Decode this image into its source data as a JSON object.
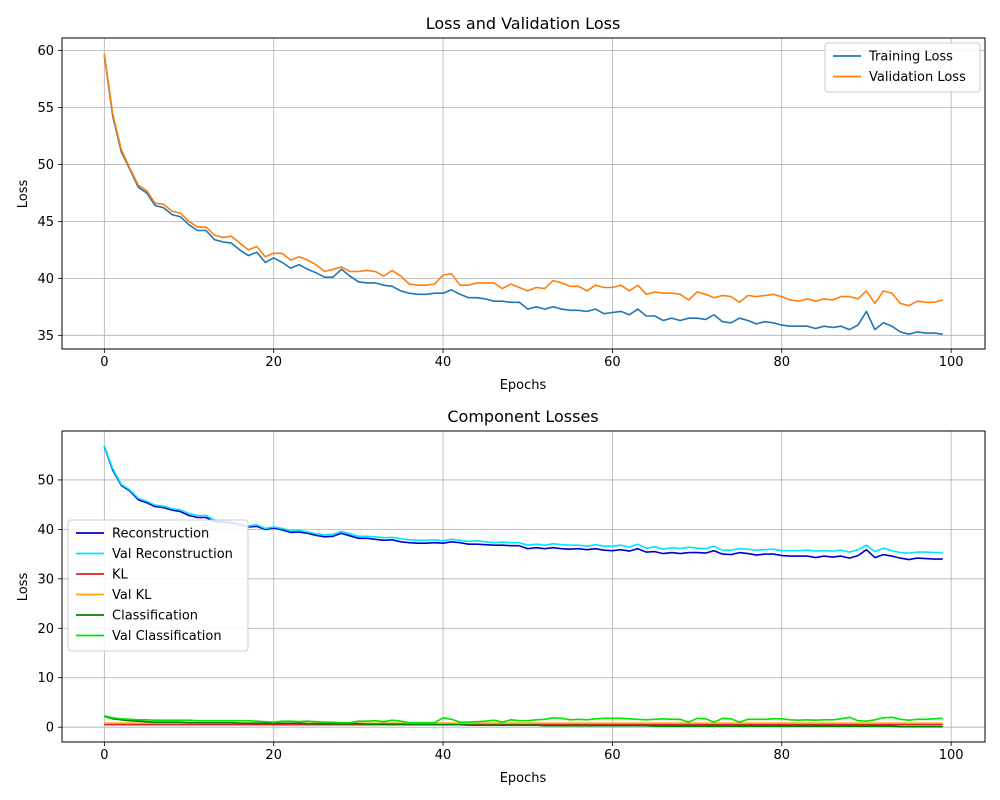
{
  "chart_data": [
    {
      "type": "line",
      "title": "Loss and Validation Loss",
      "xlabel": "Epochs",
      "ylabel": "Loss",
      "xlim": [
        -5,
        104
      ],
      "ylim": [
        33.8,
        61.1
      ],
      "xticks": [
        0,
        20,
        40,
        60,
        80,
        100
      ],
      "yticks": [
        35,
        40,
        45,
        50,
        55,
        60
      ],
      "grid": true,
      "legend_position": "top-right",
      "x_start": 0,
      "x_step": 1,
      "series": [
        {
          "name": "Training Loss",
          "color": "#1f77b4",
          "values": [
            59.6,
            54.2,
            51.1,
            49.6,
            48.0,
            47.5,
            46.4,
            46.2,
            45.6,
            45.4,
            44.7,
            44.2,
            44.2,
            43.4,
            43.2,
            43.1,
            42.5,
            42.0,
            42.3,
            41.4,
            41.8,
            41.4,
            40.9,
            41.2,
            40.8,
            40.5,
            40.1,
            40.1,
            40.8,
            40.2,
            39.7,
            39.6,
            39.6,
            39.4,
            39.3,
            38.9,
            38.7,
            38.6,
            38.6,
            38.7,
            38.7,
            39.0,
            38.6,
            38.3,
            38.3,
            38.2,
            38.0,
            38.0,
            37.9,
            37.9,
            37.3,
            37.5,
            37.3,
            37.5,
            37.3,
            37.2,
            37.2,
            37.1,
            37.3,
            36.9,
            37.0,
            37.1,
            36.8,
            37.3,
            36.7,
            36.7,
            36.3,
            36.5,
            36.3,
            36.5,
            36.5,
            36.4,
            36.8,
            36.2,
            36.1,
            36.5,
            36.3,
            36.0,
            36.2,
            36.1,
            35.9,
            35.8,
            35.8,
            35.8,
            35.6,
            35.8,
            35.7,
            35.8,
            35.5,
            35.9,
            37.1,
            35.5,
            36.1,
            35.8,
            35.3,
            35.1,
            35.3,
            35.2,
            35.2,
            35.1
          ]
        },
        {
          "name": "Validation Loss",
          "color": "#ff7f0e",
          "values": [
            59.7,
            54.4,
            51.3,
            49.7,
            48.2,
            47.7,
            46.6,
            46.5,
            45.9,
            45.7,
            45.0,
            44.5,
            44.5,
            43.8,
            43.6,
            43.7,
            43.1,
            42.5,
            42.8,
            41.9,
            42.2,
            42.2,
            41.6,
            41.9,
            41.6,
            41.2,
            40.6,
            40.8,
            41.0,
            40.6,
            40.6,
            40.7,
            40.6,
            40.2,
            40.7,
            40.2,
            39.5,
            39.4,
            39.4,
            39.5,
            40.3,
            40.4,
            39.4,
            39.4,
            39.6,
            39.6,
            39.6,
            39.1,
            39.5,
            39.2,
            38.9,
            39.2,
            39.1,
            39.8,
            39.6,
            39.3,
            39.3,
            38.9,
            39.4,
            39.2,
            39.2,
            39.4,
            38.9,
            39.4,
            38.6,
            38.8,
            38.7,
            38.7,
            38.6,
            38.1,
            38.8,
            38.6,
            38.3,
            38.5,
            38.4,
            37.9,
            38.5,
            38.4,
            38.5,
            38.6,
            38.4,
            38.1,
            38.0,
            38.2,
            38.0,
            38.2,
            38.1,
            38.4,
            38.4,
            38.2,
            38.9,
            37.8,
            38.9,
            38.7,
            37.8,
            37.6,
            38.0,
            37.9,
            37.9,
            38.1
          ]
        }
      ]
    },
    {
      "type": "line",
      "title": "Component Losses",
      "xlabel": "Epochs",
      "ylabel": "Loss",
      "xlim": [
        -5,
        104
      ],
      "ylim": [
        -3.0,
        59.9
      ],
      "xticks": [
        0,
        20,
        40,
        60,
        80,
        100
      ],
      "yticks": [
        0,
        10,
        20,
        30,
        40,
        50
      ],
      "grid": true,
      "legend_position": "center-left",
      "x_start": 0,
      "x_step": 1,
      "series": [
        {
          "name": "Reconstruction",
          "color": "#0000cd",
          "values": [
            56.8,
            52.0,
            48.9,
            47.8,
            46.0,
            45.4,
            44.6,
            44.4,
            43.9,
            43.6,
            42.8,
            42.4,
            42.4,
            41.6,
            41.5,
            41.3,
            40.9,
            40.5,
            40.6,
            40.0,
            40.3,
            39.9,
            39.4,
            39.5,
            39.2,
            38.8,
            38.5,
            38.6,
            39.2,
            38.7,
            38.2,
            38.2,
            38.0,
            37.8,
            37.9,
            37.5,
            37.3,
            37.2,
            37.2,
            37.3,
            37.2,
            37.5,
            37.3,
            37.0,
            37.0,
            36.9,
            36.8,
            36.8,
            36.7,
            36.7,
            36.1,
            36.3,
            36.1,
            36.3,
            36.1,
            36.0,
            36.1,
            35.9,
            36.1,
            35.8,
            35.7,
            35.9,
            35.6,
            36.1,
            35.4,
            35.5,
            35.1,
            35.3,
            35.1,
            35.3,
            35.3,
            35.2,
            35.7,
            35.0,
            34.9,
            35.3,
            35.1,
            34.8,
            35.0,
            35.0,
            34.7,
            34.6,
            34.6,
            34.6,
            34.3,
            34.6,
            34.4,
            34.6,
            34.2,
            34.7,
            35.9,
            34.3,
            34.9,
            34.6,
            34.2,
            33.9,
            34.2,
            34.1,
            34.0,
            34.0
          ]
        },
        {
          "name": "Val Reconstruction",
          "color": "#00e5ff",
          "values": [
            56.9,
            52.3,
            49.1,
            48.0,
            46.3,
            45.7,
            44.9,
            44.7,
            44.2,
            43.9,
            43.2,
            42.8,
            42.8,
            41.9,
            41.8,
            41.6,
            41.2,
            40.7,
            40.9,
            40.2,
            40.5,
            40.2,
            39.7,
            39.8,
            39.5,
            39.1,
            38.9,
            39.0,
            39.6,
            39.1,
            38.6,
            38.6,
            38.5,
            38.3,
            38.4,
            38.1,
            37.9,
            37.8,
            37.8,
            37.9,
            37.7,
            38.0,
            37.8,
            37.6,
            37.7,
            37.5,
            37.3,
            37.4,
            37.3,
            37.3,
            36.8,
            37.0,
            36.8,
            37.1,
            36.9,
            36.8,
            36.8,
            36.6,
            36.9,
            36.6,
            36.6,
            36.8,
            36.4,
            37.0,
            36.2,
            36.5,
            36.0,
            36.3,
            36.1,
            36.4,
            36.2,
            36.1,
            36.6,
            35.8,
            35.8,
            36.1,
            36.0,
            35.8,
            35.9,
            36.0,
            35.7,
            35.7,
            35.7,
            35.8,
            35.6,
            35.7,
            35.6,
            35.8,
            35.4,
            35.9,
            36.8,
            35.5,
            36.2,
            35.7,
            35.3,
            35.2,
            35.4,
            35.4,
            35.3,
            35.3
          ]
        },
        {
          "name": "KL",
          "color": "#d62728",
          "values": [
            0.5,
            0.5,
            0.5,
            0.5,
            0.5,
            0.5,
            0.5,
            0.5,
            0.5,
            0.5,
            0.5,
            0.5,
            0.5,
            0.5,
            0.5,
            0.5,
            0.5,
            0.5,
            0.5,
            0.5,
            0.5,
            0.5,
            0.5,
            0.5,
            0.5,
            0.5,
            0.5,
            0.5,
            0.5,
            0.5,
            0.5,
            0.5,
            0.5,
            0.5,
            0.5,
            0.5,
            0.5,
            0.5,
            0.5,
            0.5,
            0.5,
            0.5,
            0.5,
            0.5,
            0.5,
            0.5,
            0.5,
            0.5,
            0.5,
            0.5,
            0.5,
            0.5,
            0.5,
            0.5,
            0.5,
            0.5,
            0.5,
            0.5,
            0.5,
            0.5,
            0.5,
            0.5,
            0.5,
            0.5,
            0.5,
            0.5,
            0.5,
            0.5,
            0.5,
            0.5,
            0.5,
            0.5,
            0.5,
            0.5,
            0.5,
            0.5,
            0.5,
            0.5,
            0.5,
            0.5,
            0.5,
            0.5,
            0.5,
            0.5,
            0.5,
            0.5,
            0.5,
            0.5,
            0.5,
            0.5,
            0.5,
            0.5,
            0.5,
            0.5,
            0.5,
            0.5,
            0.5,
            0.5,
            0.5,
            0.5
          ]
        },
        {
          "name": "Val KL",
          "color": "#ffa500",
          "values": [
            0.8,
            0.8,
            0.8,
            0.8,
            0.8,
            0.8,
            0.8,
            0.8,
            0.8,
            0.8,
            0.8,
            0.8,
            0.8,
            0.8,
            0.8,
            0.8,
            0.8,
            0.8,
            0.8,
            0.8,
            0.8,
            0.8,
            0.8,
            0.8,
            0.8,
            0.8,
            0.8,
            0.8,
            0.8,
            0.8,
            0.8,
            0.8,
            0.8,
            0.8,
            0.8,
            0.8,
            0.8,
            0.8,
            0.8,
            0.8,
            0.8,
            0.8,
            0.8,
            0.8,
            0.8,
            0.8,
            0.8,
            0.8,
            0.8,
            0.8,
            0.8,
            0.8,
            0.8,
            0.8,
            0.8,
            0.8,
            0.8,
            0.8,
            0.8,
            0.8,
            0.8,
            0.8,
            0.8,
            0.8,
            0.8,
            0.8,
            0.8,
            0.8,
            0.8,
            0.8,
            0.8,
            0.8,
            0.8,
            0.8,
            0.8,
            0.8,
            0.8,
            0.8,
            0.8,
            0.8,
            0.8,
            0.8,
            0.8,
            0.8,
            0.8,
            0.8,
            0.8,
            0.8,
            0.8,
            0.8,
            0.8,
            0.8,
            0.8,
            0.8,
            0.8,
            0.8,
            0.8,
            0.8,
            0.8,
            0.8
          ]
        },
        {
          "name": "Classification",
          "color": "#008000",
          "values": [
            2.2,
            1.7,
            1.5,
            1.3,
            1.2,
            1.1,
            1.0,
            1.0,
            1.0,
            1.0,
            0.9,
            0.9,
            0.9,
            0.9,
            0.9,
            0.9,
            0.8,
            0.8,
            0.8,
            0.8,
            0.8,
            0.8,
            0.8,
            0.8,
            0.7,
            0.7,
            0.7,
            0.7,
            0.7,
            0.7,
            0.7,
            0.6,
            0.6,
            0.6,
            0.6,
            0.6,
            0.5,
            0.5,
            0.5,
            0.5,
            0.5,
            0.5,
            0.5,
            0.4,
            0.4,
            0.4,
            0.4,
            0.4,
            0.4,
            0.4,
            0.4,
            0.4,
            0.3,
            0.3,
            0.3,
            0.3,
            0.3,
            0.3,
            0.3,
            0.3,
            0.3,
            0.3,
            0.3,
            0.3,
            0.3,
            0.2,
            0.2,
            0.2,
            0.2,
            0.2,
            0.2,
            0.2,
            0.2,
            0.2,
            0.2,
            0.2,
            0.2,
            0.2,
            0.2,
            0.2,
            0.2,
            0.2,
            0.2,
            0.2,
            0.2,
            0.2,
            0.2,
            0.2,
            0.2,
            0.2,
            0.2,
            0.2,
            0.2,
            0.2,
            0.1,
            0.1,
            0.1,
            0.1,
            0.1,
            0.1
          ]
        },
        {
          "name": "Val Classification",
          "color": "#00e600",
          "values": [
            2.3,
            1.9,
            1.7,
            1.6,
            1.5,
            1.5,
            1.4,
            1.4,
            1.4,
            1.4,
            1.4,
            1.3,
            1.3,
            1.3,
            1.3,
            1.3,
            1.3,
            1.3,
            1.2,
            1.1,
            1.0,
            1.2,
            1.2,
            1.1,
            1.2,
            1.1,
            1.0,
            1.0,
            0.9,
            0.9,
            1.2,
            1.2,
            1.3,
            1.1,
            1.4,
            1.2,
            0.9,
            0.9,
            0.9,
            0.9,
            1.9,
            1.6,
            1.0,
            1.0,
            1.1,
            1.2,
            1.4,
            1.0,
            1.5,
            1.3,
            1.3,
            1.5,
            1.6,
            1.9,
            1.8,
            1.5,
            1.6,
            1.5,
            1.7,
            1.8,
            1.8,
            1.8,
            1.7,
            1.6,
            1.5,
            1.6,
            1.7,
            1.6,
            1.6,
            1.0,
            1.8,
            1.7,
            1.0,
            1.8,
            1.7,
            1.0,
            1.6,
            1.6,
            1.6,
            1.7,
            1.7,
            1.5,
            1.4,
            1.5,
            1.4,
            1.5,
            1.5,
            1.7,
            2.0,
            1.3,
            1.2,
            1.5,
            1.9,
            2.0,
            1.6,
            1.4,
            1.6,
            1.6,
            1.7,
            1.8
          ]
        }
      ]
    }
  ]
}
